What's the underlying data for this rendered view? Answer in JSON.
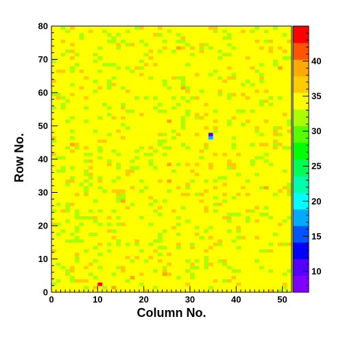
{
  "chart_data": {
    "type": "heatmap",
    "title": "",
    "xlabel": "Column No.",
    "ylabel": "Row No.",
    "xlim": [
      0,
      52
    ],
    "ylim": [
      0,
      80
    ],
    "x_ticks": [
      "0",
      "10",
      "20",
      "30",
      "40",
      "50"
    ],
    "y_ticks": [
      "0",
      "10",
      "20",
      "30",
      "40",
      "50",
      "60",
      "70",
      "80"
    ],
    "grid": false,
    "colorbar": {
      "range": [
        7,
        45
      ],
      "labels": [
        "10",
        "15",
        "20",
        "25",
        "30",
        "35",
        "40"
      ],
      "colors": [
        "#7f00ff",
        "#5500ff",
        "#0000ff",
        "#0055ff",
        "#00aaff",
        "#00ffff",
        "#00ffaa",
        "#00ff55",
        "#00ff00",
        "#55ff00",
        "#aaff00",
        "#ffff00",
        "#ffcc00",
        "#ffaa00",
        "#ff5500",
        "#ff0000"
      ]
    },
    "background_value": 35,
    "bins": {
      "columns": 52,
      "rows": 80
    },
    "notable_cells": [
      {
        "column": 10,
        "row": 2,
        "value": 44
      },
      {
        "column": 34,
        "row": 47,
        "value": 10
      },
      {
        "column": 34,
        "row": 46,
        "value": 18
      },
      {
        "column": 27,
        "row": 73,
        "value": 40
      },
      {
        "column": 28,
        "row": 61,
        "value": 40
      },
      {
        "column": 49,
        "row": 67,
        "value": 40
      },
      {
        "column": 25,
        "row": 51,
        "value": 40
      },
      {
        "column": 4,
        "row": 44,
        "value": 40
      },
      {
        "column": 25,
        "row": 38,
        "value": 40
      },
      {
        "column": 25,
        "row": 33,
        "value": 40
      },
      {
        "column": 15,
        "row": 27,
        "value": 40
      },
      {
        "column": 46,
        "row": 31,
        "value": 40
      },
      {
        "column": 24,
        "row": 5,
        "value": 40
      },
      {
        "column": 17,
        "row": 4,
        "value": 40
      },
      {
        "column": 13,
        "row": 1,
        "value": 40
      }
    ],
    "scattered_low_value": 31,
    "scattered_low_fraction": 0.1,
    "scattered_high_value": 37,
    "scattered_high_fraction": 0.05
  }
}
